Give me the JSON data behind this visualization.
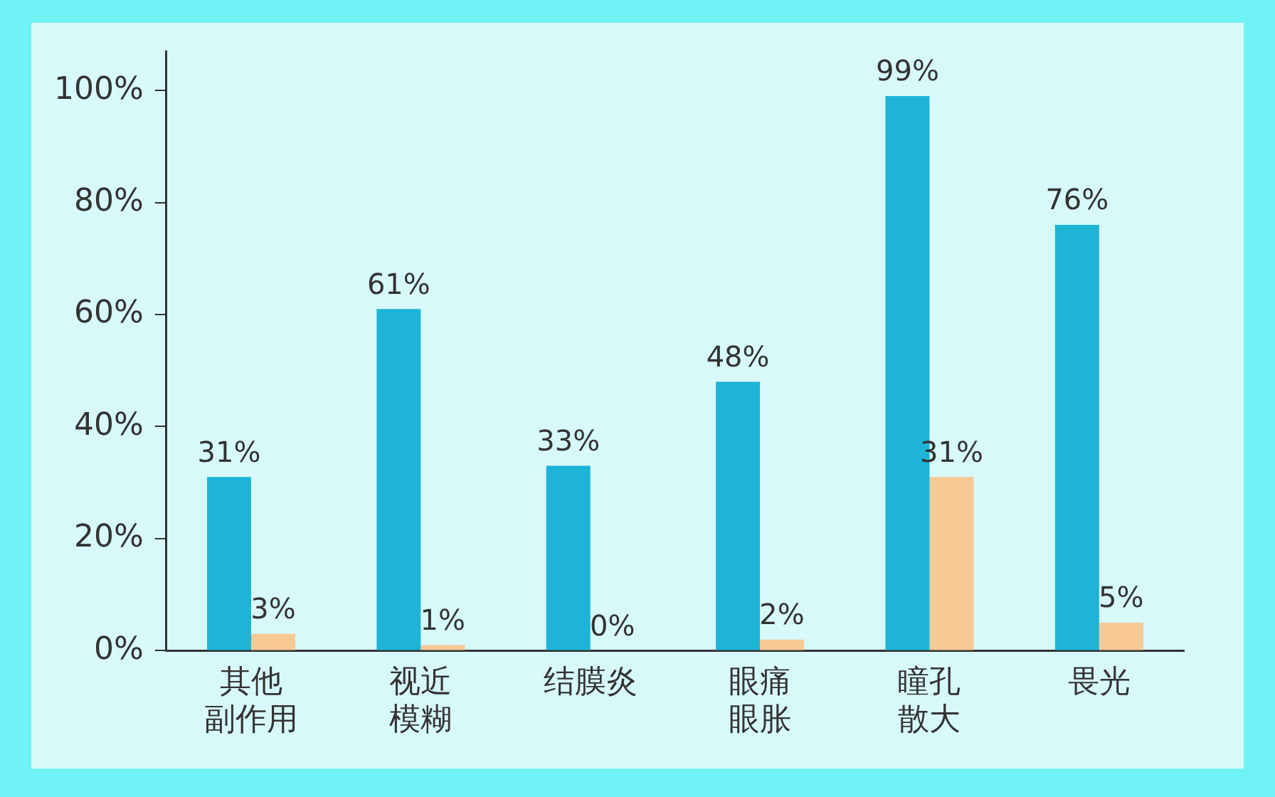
{
  "chart_data": {
    "type": "bar",
    "categories": [
      "其他副作用",
      "视近模糊",
      "结膜炎",
      "眼痛眼胀",
      "瞳孔散大",
      "畏光"
    ],
    "series": [
      {
        "color": "#1eb4d6",
        "values": [
          31,
          61,
          33,
          48,
          99,
          76
        ],
        "value_labels": [
          "31%",
          "61%",
          "33%",
          "48%",
          "99%",
          "76%"
        ]
      },
      {
        "color": "#f7c994",
        "values": [
          3,
          1,
          0,
          2,
          31,
          5
        ],
        "value_labels": [
          "3%",
          "1%",
          "0%",
          "2%",
          "31%",
          "5%"
        ]
      }
    ],
    "ylim": [
      0,
      107
    ],
    "yticks": [
      {
        "value": 0,
        "label": "0%"
      },
      {
        "value": 20,
        "label": "20%"
      },
      {
        "value": 40,
        "label": "40%"
      },
      {
        "value": 60,
        "label": "60%"
      },
      {
        "value": 80,
        "label": "80%"
      },
      {
        "value": 100,
        "label": "100%"
      }
    ],
    "grid": false,
    "legend": false
  }
}
